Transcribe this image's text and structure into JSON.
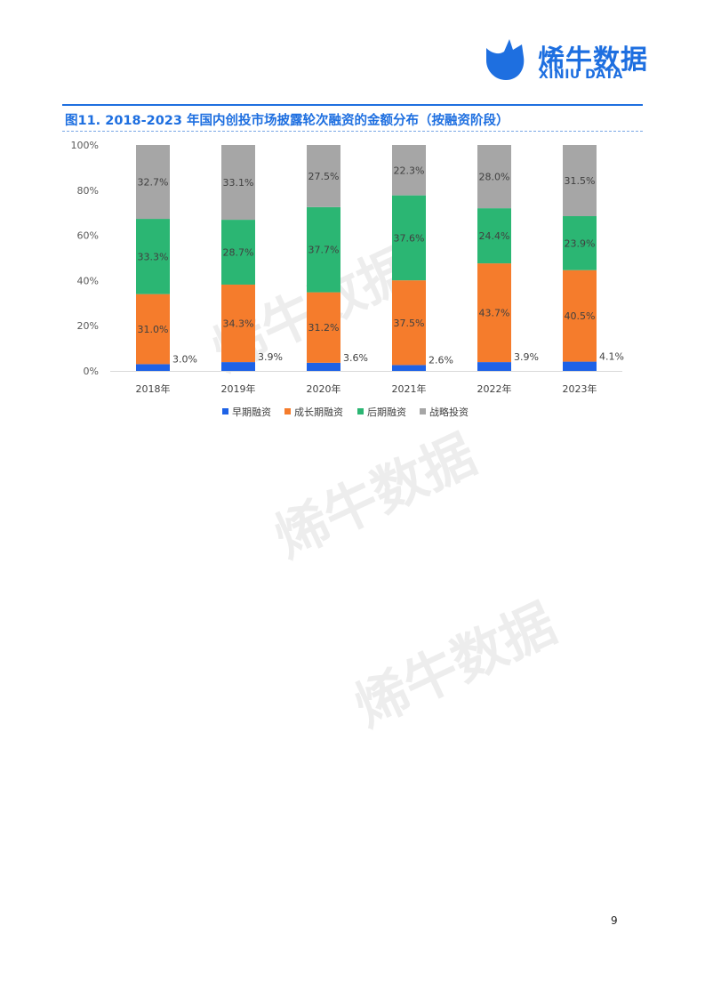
{
  "header": {
    "logo_cn": "烯牛数据",
    "logo_en": "XINIU DATA",
    "brand_color": "#1e6fe0"
  },
  "figure": {
    "title": "图11.   2018-2023 年国内创投市场披露轮次融资的金额分布（按融资阶段）"
  },
  "chart_data": {
    "type": "bar",
    "stacked": true,
    "categories": [
      "2018年",
      "2019年",
      "2020年",
      "2021年",
      "2022年",
      "2023年"
    ],
    "series": [
      {
        "name": "早期融资",
        "color": "#1e62e6",
        "values": [
          3.0,
          3.9,
          3.6,
          2.6,
          3.9,
          4.1
        ],
        "labels": [
          "3.0%",
          "3.9%",
          "3.6%",
          "2.6%",
          "3.9%",
          "4.1%"
        ]
      },
      {
        "name": "成长期融资",
        "color": "#f57c2c",
        "values": [
          31.0,
          34.3,
          31.2,
          37.5,
          43.7,
          40.5
        ],
        "labels": [
          "31.0%",
          "34.3%",
          "31.2%",
          "37.5%",
          "43.7%",
          "40.5%"
        ]
      },
      {
        "name": "后期融资",
        "color": "#2bb673",
        "values": [
          33.3,
          28.7,
          37.7,
          37.6,
          24.4,
          23.9
        ],
        "labels": [
          "33.3%",
          "28.7%",
          "37.7%",
          "37.6%",
          "24.4%",
          "23.9%"
        ]
      },
      {
        "name": "战略投资",
        "color": "#a6a6a6",
        "values": [
          32.7,
          33.1,
          27.5,
          22.3,
          28.0,
          31.5
        ],
        "labels": [
          "32.7%",
          "33.1%",
          "27.5%",
          "22.3%",
          "28.0%",
          "31.5%"
        ]
      }
    ],
    "ylim": [
      0,
      100
    ],
    "yticks": [
      "0%",
      "20%",
      "40%",
      "60%",
      "80%",
      "100%"
    ],
    "grid": false,
    "legend": "bottom"
  },
  "footer": {
    "page_number": "9"
  }
}
